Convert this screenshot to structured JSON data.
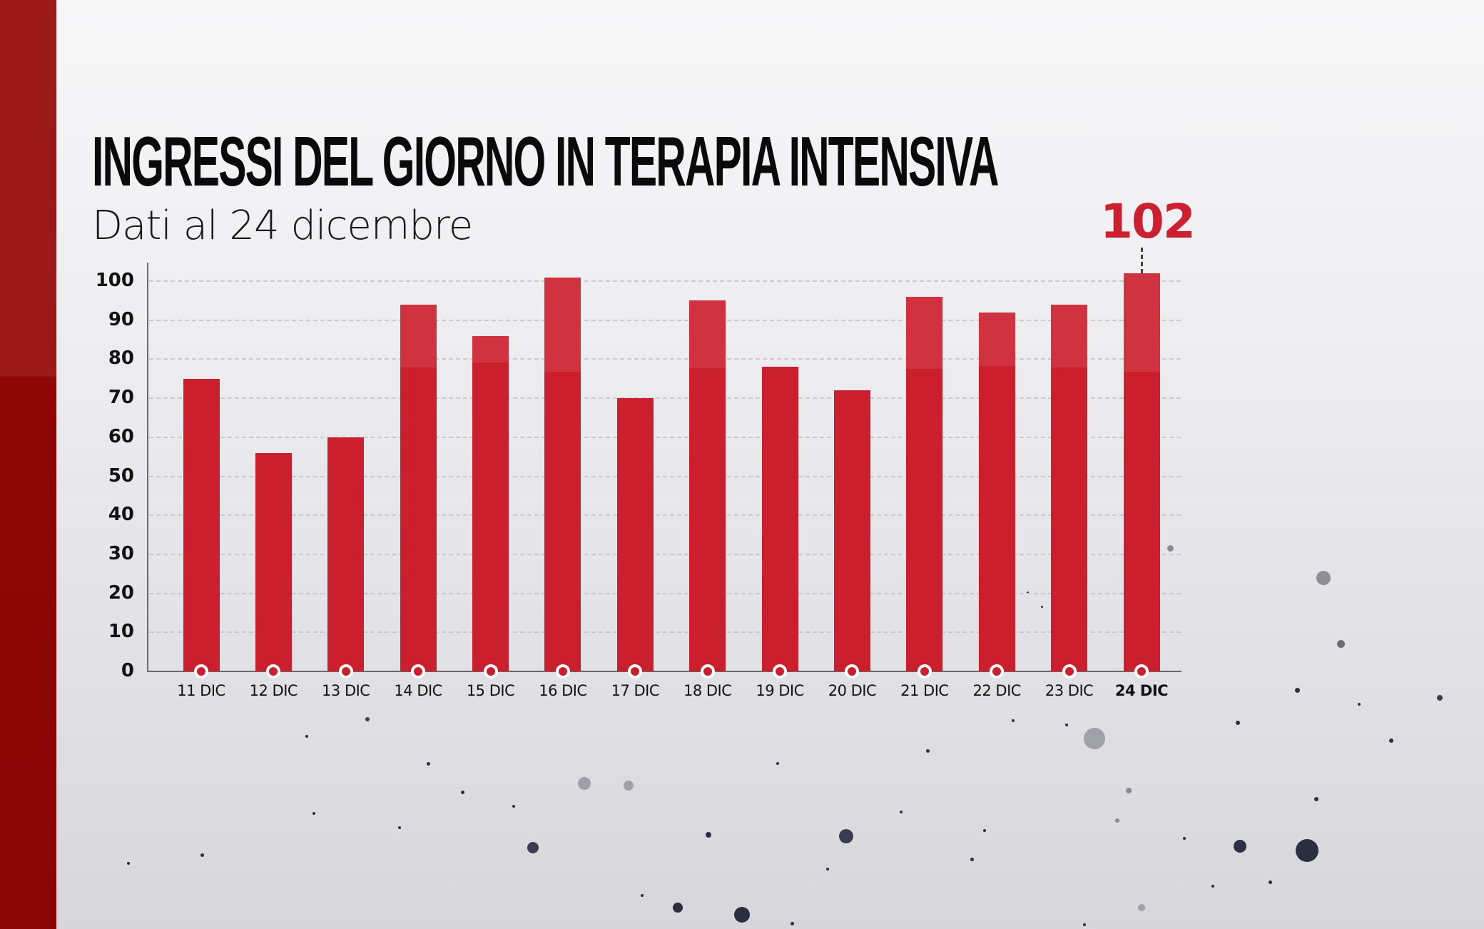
{
  "title": "INGRESSI DEL GIORNO IN TERAPIA INTENSIVA",
  "subtitle": "Dati al 24 dicembre",
  "callout": {
    "value": "102",
    "category": "24 DIC"
  },
  "colors": {
    "bar": "#cc1f2d",
    "accent_stripe": "#8f0707",
    "callout": "#cc2030",
    "text": "#111111"
  },
  "chart_data": {
    "type": "bar",
    "title": "INGRESSI DEL GIORNO IN TERAPIA INTENSIVA",
    "subtitle": "Dati al 24 dicembre",
    "xlabel": "",
    "ylabel": "",
    "categories": [
      "11 DIC",
      "12 DIC",
      "13 DIC",
      "14 DIC",
      "15 DIC",
      "16 DIC",
      "17 DIC",
      "18 DIC",
      "19 DIC",
      "20 DIC",
      "21 DIC",
      "22 DIC",
      "23 DIC",
      "24 DIC"
    ],
    "values": [
      75,
      56,
      60,
      94,
      86,
      101,
      70,
      95,
      78,
      72,
      96,
      92,
      94,
      102
    ],
    "yticks": [
      "0",
      "10",
      "20",
      "30",
      "40",
      "50",
      "60",
      "70",
      "80",
      "90",
      "100"
    ],
    "ylim": [
      0,
      100
    ],
    "grid": true,
    "legend": null,
    "annotations": [
      {
        "category": "24 DIC",
        "text": "102"
      }
    ],
    "highlighted_category": "24 DIC"
  }
}
